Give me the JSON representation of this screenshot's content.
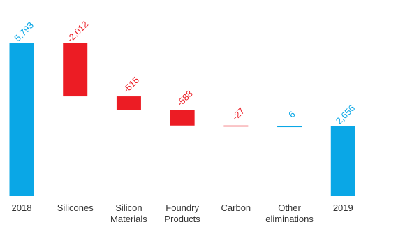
{
  "chart_data": {
    "type": "waterfall",
    "categories": [
      "2018",
      "Silicones",
      "Silicon Materials",
      "Foundry Products",
      "Carbon",
      "Other eliminations",
      "2019"
    ],
    "values": [
      5793,
      -2012,
      -515,
      -588,
      -27,
      6,
      2656
    ],
    "value_labels": [
      "5,793",
      "-2,012",
      "-515",
      "-588",
      "-27",
      "6",
      "2,656"
    ],
    "color_positive": "#0aa7e6",
    "color_negative": "#ec1c24"
  }
}
